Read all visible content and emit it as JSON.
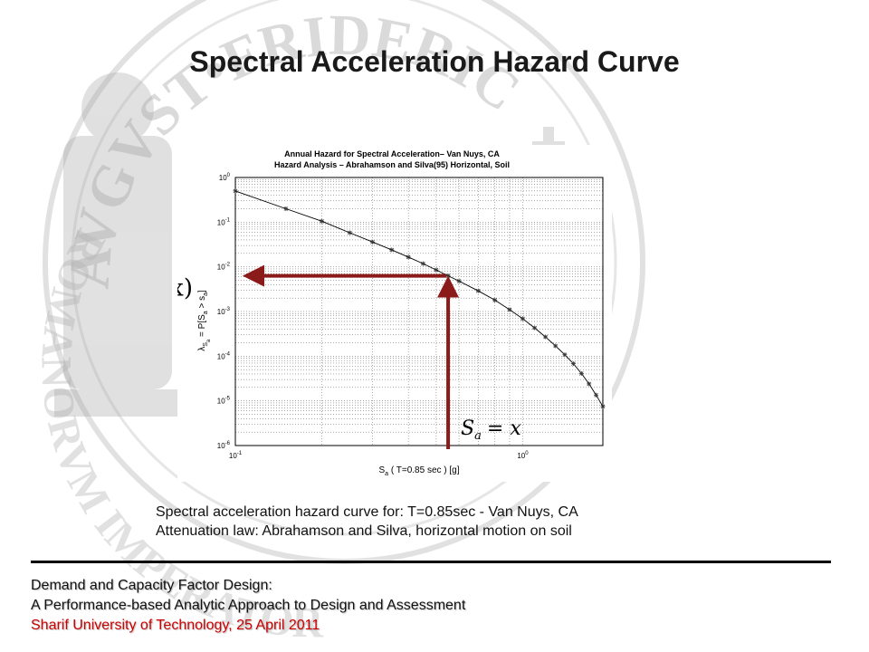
{
  "slide": {
    "title": "Spectral Acceleration Hazard Curve",
    "caption_line1": "Spectral acceleration hazard curve for:  T=0.85sec - Van Nuys, CA",
    "caption_line2": "Attenuation law: Abrahamson and Silva, horizontal motion on soil"
  },
  "footer": {
    "line1": "Demand and Capacity Factor Design:",
    "line2": "A Performance-based Analytic Approach to Design and Assessment",
    "line3": "Sharif University of Technology, 25 April 2011"
  },
  "seal": {
    "text_top": "AVGVST•FRIDERIC",
    "text_bottom": "ROMANORVM IMPERATOR"
  },
  "chart_data": {
    "type": "line",
    "title": "Annual Hazard for Spectral Acceleration– Van Nuys, CA",
    "subtitle": "Hazard Analysis – Abrahamson and Silva(95) Horizontal, Soil",
    "xlabel": "S",
    "xlabel_sub": "a",
    "xlabel_rest": " ( T=0.85 sec ) [g]",
    "ylabel": "λ",
    "ylabel_sub": "S",
    "ylabel_sub2": "a",
    "ylabel_rest": " = P[S",
    "ylabel_sub3": "a",
    "ylabel_end": " > s",
    "ylabel_sub4": "a",
    "ylabel_close": "]",
    "xscale": "log",
    "yscale": "log",
    "xlim": [
      0.1,
      1.9
    ],
    "ylim": [
      1e-06,
      1
    ],
    "grid": true,
    "x_ticks": [
      {
        "value": 0.1,
        "base": "10",
        "exp": "-1"
      },
      {
        "value": 1,
        "base": "10",
        "exp": "0"
      }
    ],
    "y_ticks": [
      {
        "value": 1,
        "base": "10",
        "exp": "0"
      },
      {
        "value": 0.1,
        "base": "10",
        "exp": "-1"
      },
      {
        "value": 0.01,
        "base": "10",
        "exp": "-2"
      },
      {
        "value": 0.001,
        "base": "10",
        "exp": "-3"
      },
      {
        "value": 0.0001,
        "base": "10",
        "exp": "-4"
      },
      {
        "value": 1e-05,
        "base": "10",
        "exp": "-5"
      },
      {
        "value": 1e-06,
        "base": "10",
        "exp": "-6"
      }
    ],
    "series": [
      {
        "color": "#000000",
        "marker": "star",
        "x": [
          0.1,
          0.15,
          0.2,
          0.25,
          0.3,
          0.35,
          0.4,
          0.45,
          0.5,
          0.55,
          0.6,
          0.7,
          0.8,
          0.9,
          1.0,
          1.1,
          1.2,
          1.3,
          1.4,
          1.5,
          1.6,
          1.7,
          1.8,
          1.9
        ],
        "y": [
          0.5,
          0.2,
          0.105,
          0.058,
          0.036,
          0.024,
          0.0165,
          0.0118,
          0.0085,
          0.0063,
          0.0048,
          0.0029,
          0.0018,
          0.0011,
          0.00069,
          0.00043,
          0.00027,
          0.00017,
          0.000108,
          6.8e-05,
          4.1e-05,
          2.4e-05,
          1.35e-05,
          7.5e-06
        ]
      }
    ],
    "annotations": {
      "lambda_label": "λ",
      "lambda_sub": "S",
      "lambda_sub2": "a",
      "lambda_arg": "(x)",
      "sa_label": "S",
      "sa_sub": "a",
      "sa_eq": "= x",
      "arrow_color": "#8b1a1a",
      "x_point": 0.55,
      "y_point": 0.0063
    }
  }
}
